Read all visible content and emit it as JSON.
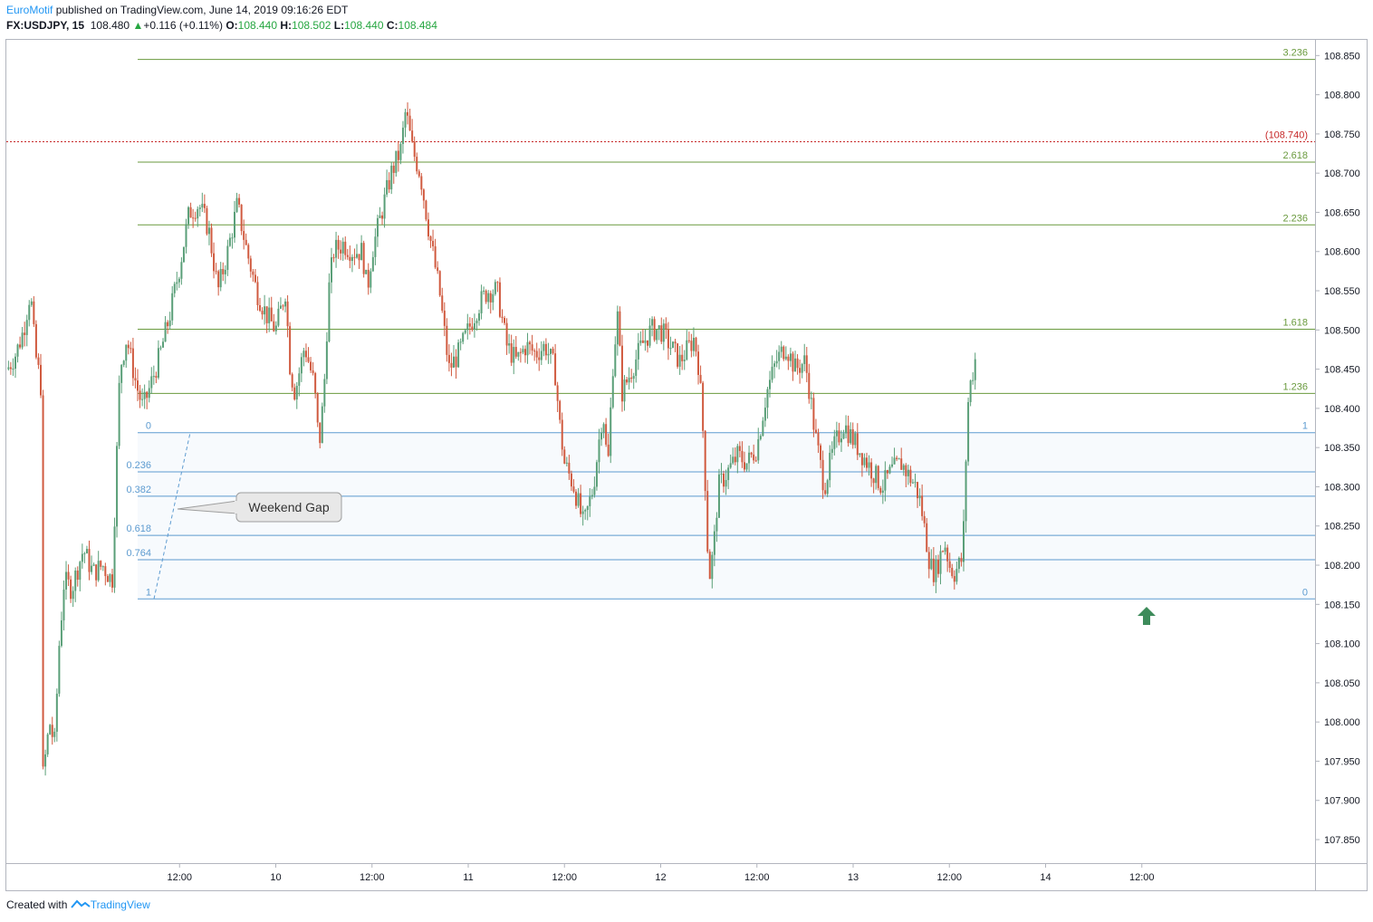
{
  "header": {
    "publisher": "EuroMotif",
    "published_text": " published on TradingView.com, June 14, 2019 09:16:26 EDT",
    "symbol": "FX:USDJPY, 15",
    "last": "108.480",
    "change": "+0.116 (+0.11%)",
    "o_label": "O:",
    "o": "108.440",
    "h_label": "H:",
    "h": "108.502",
    "l_label": "L:",
    "l": "108.440",
    "c_label": "C:",
    "c": "108.484"
  },
  "footer": {
    "created_with": "Created with",
    "brand": "TradingView"
  },
  "colors": {
    "up": "#5a9f78",
    "down": "#d05a3f",
    "fib_ext": "#6a9a3e",
    "fib_retr": "#5d9bd0",
    "alert": "#c62828"
  },
  "chart_data": {
    "type": "candlestick",
    "ylim": [
      107.82,
      108.87
    ],
    "y_ticks": [
      "108.850",
      "108.800",
      "108.750",
      "108.700",
      "108.650",
      "108.600",
      "108.550",
      "108.500",
      "108.450",
      "108.400",
      "108.350",
      "108.300",
      "108.250",
      "108.200",
      "108.150",
      "108.100",
      "108.050",
      "108.000",
      "107.950",
      "107.900",
      "107.850"
    ],
    "x_ticks": [
      {
        "label": "12:00",
        "t": 2
      },
      {
        "label": "10",
        "t": 3
      },
      {
        "label": "12:00",
        "t": 4
      },
      {
        "label": "11",
        "t": 5
      },
      {
        "label": "12:00",
        "t": 6
      },
      {
        "label": "12",
        "t": 7
      },
      {
        "label": "12:00",
        "t": 8
      },
      {
        "label": "13",
        "t": 9
      },
      {
        "label": "12:00",
        "t": 10
      },
      {
        "label": "14",
        "t": 11
      },
      {
        "label": "12:00",
        "t": 12
      }
    ],
    "x_range": [
      0.2,
      13.8
    ],
    "price_alert": {
      "price": 108.74,
      "label": "(108.740)"
    },
    "fib_extension": [
      {
        "level": "3.236",
        "price": 108.845
      },
      {
        "level": "2.618",
        "price": 108.714
      },
      {
        "level": "2.236",
        "price": 108.634
      },
      {
        "level": "1.618",
        "price": 108.501
      },
      {
        "level": "1.236",
        "price": 108.419
      },
      {
        "level": "1",
        "price": 108.369
      },
      {
        "level": "0",
        "price": 108.157
      }
    ],
    "fib_retracement": [
      {
        "level": "0",
        "price": 108.369
      },
      {
        "level": "0.236",
        "price": 108.319
      },
      {
        "level": "0.382",
        "price": 108.288
      },
      {
        "level": "0.618",
        "price": 108.238
      },
      {
        "level": "0.764",
        "price": 108.207
      },
      {
        "level": "1",
        "price": 108.157
      }
    ],
    "annotation": {
      "text": "Weekend Gap"
    },
    "series_path": [
      [
        0.21,
        108.45
      ],
      [
        0.3,
        108.47
      ],
      [
        0.38,
        108.5
      ],
      [
        0.45,
        108.55
      ],
      [
        0.5,
        108.47
      ],
      [
        0.53,
        108.45
      ],
      [
        0.57,
        108.42
      ],
      [
        0.58,
        107.93
      ],
      [
        0.65,
        108.0
      ],
      [
        0.7,
        107.97
      ],
      [
        0.75,
        108.1
      ],
      [
        0.8,
        108.18
      ],
      [
        0.88,
        108.17
      ],
      [
        0.95,
        108.2
      ],
      [
        1.0,
        108.22
      ],
      [
        1.1,
        108.19
      ],
      [
        1.2,
        108.2
      ],
      [
        1.3,
        108.18
      ],
      [
        1.38,
        108.45
      ],
      [
        1.45,
        108.49
      ],
      [
        1.55,
        108.43
      ],
      [
        1.62,
        108.4
      ],
      [
        1.7,
        108.43
      ],
      [
        1.8,
        108.47
      ],
      [
        1.9,
        108.52
      ],
      [
        2.0,
        108.58
      ],
      [
        2.1,
        108.65
      ],
      [
        2.2,
        108.66
      ],
      [
        2.3,
        108.63
      ],
      [
        2.4,
        108.55
      ],
      [
        2.5,
        108.6
      ],
      [
        2.6,
        108.66
      ],
      [
        2.7,
        108.6
      ],
      [
        2.8,
        108.55
      ],
      [
        2.9,
        108.52
      ],
      [
        3.0,
        108.5
      ],
      [
        3.1,
        108.55
      ],
      [
        3.15,
        108.45
      ],
      [
        3.2,
        108.42
      ],
      [
        3.3,
        108.48
      ],
      [
        3.4,
        108.43
      ],
      [
        3.45,
        108.35
      ],
      [
        3.5,
        108.42
      ],
      [
        3.55,
        108.55
      ],
      [
        3.6,
        108.6
      ],
      [
        3.7,
        108.61
      ],
      [
        3.8,
        108.6
      ],
      [
        3.9,
        108.6
      ],
      [
        3.95,
        108.55
      ],
      [
        4.0,
        108.6
      ],
      [
        4.1,
        108.65
      ],
      [
        4.2,
        108.7
      ],
      [
        4.3,
        108.73
      ],
      [
        4.35,
        108.78
      ],
      [
        4.42,
        108.73
      ],
      [
        4.5,
        108.7
      ],
      [
        4.6,
        108.62
      ],
      [
        4.7,
        108.55
      ],
      [
        4.8,
        108.45
      ],
      [
        4.9,
        108.47
      ],
      [
        5.0,
        108.5
      ],
      [
        5.1,
        108.53
      ],
      [
        5.2,
        108.55
      ],
      [
        5.3,
        108.55
      ],
      [
        5.4,
        108.48
      ],
      [
        5.5,
        108.46
      ],
      [
        5.6,
        108.48
      ],
      [
        5.7,
        108.47
      ],
      [
        5.8,
        108.48
      ],
      [
        5.9,
        108.45
      ],
      [
        5.95,
        108.38
      ],
      [
        6.0,
        108.33
      ],
      [
        6.1,
        108.3
      ],
      [
        6.2,
        108.25
      ],
      [
        6.3,
        108.3
      ],
      [
        6.35,
        108.35
      ],
      [
        6.4,
        108.4
      ],
      [
        6.45,
        108.32
      ],
      [
        6.5,
        108.45
      ],
      [
        6.55,
        108.52
      ],
      [
        6.6,
        108.42
      ],
      [
        6.7,
        108.45
      ],
      [
        6.8,
        108.48
      ],
      [
        6.9,
        108.5
      ],
      [
        7.0,
        108.5
      ],
      [
        7.1,
        108.48
      ],
      [
        7.2,
        108.46
      ],
      [
        7.3,
        108.48
      ],
      [
        7.35,
        108.49
      ],
      [
        7.4,
        108.45
      ],
      [
        7.45,
        108.35
      ],
      [
        7.5,
        108.18
      ],
      [
        7.55,
        108.22
      ],
      [
        7.6,
        108.3
      ],
      [
        7.7,
        108.32
      ],
      [
        7.8,
        108.34
      ],
      [
        7.9,
        108.33
      ],
      [
        8.0,
        108.35
      ],
      [
        8.1,
        108.42
      ],
      [
        8.2,
        108.46
      ],
      [
        8.3,
        108.48
      ],
      [
        8.4,
        108.45
      ],
      [
        8.5,
        108.46
      ],
      [
        8.55,
        108.42
      ],
      [
        8.6,
        108.37
      ],
      [
        8.7,
        108.3
      ],
      [
        8.8,
        108.35
      ],
      [
        8.9,
        108.38
      ],
      [
        9.0,
        108.36
      ],
      [
        9.1,
        108.34
      ],
      [
        9.2,
        108.32
      ],
      [
        9.3,
        108.3
      ],
      [
        9.4,
        108.32
      ],
      [
        9.5,
        108.33
      ],
      [
        9.6,
        108.31
      ],
      [
        9.65,
        108.3
      ],
      [
        9.7,
        108.28
      ],
      [
        9.75,
        108.24
      ],
      [
        9.8,
        108.2
      ],
      [
        9.85,
        108.19
      ],
      [
        9.9,
        108.21
      ],
      [
        9.95,
        108.23
      ],
      [
        10.0,
        108.2
      ],
      [
        10.05,
        108.19
      ],
      [
        10.1,
        108.2
      ],
      [
        10.14,
        108.21
      ],
      [
        10.16,
        108.3
      ],
      [
        10.2,
        108.42
      ],
      [
        10.25,
        108.45
      ],
      [
        10.28,
        108.47
      ]
    ]
  }
}
